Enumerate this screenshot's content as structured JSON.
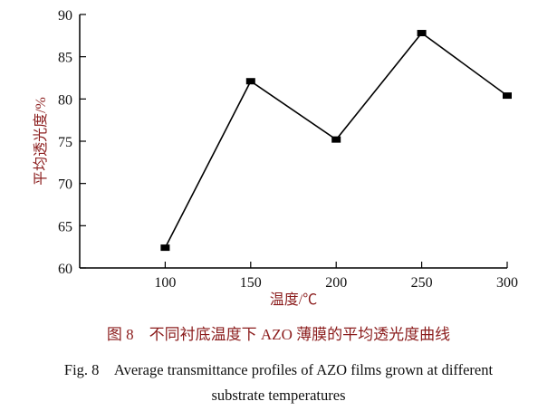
{
  "chart_data": {
    "type": "line",
    "x": [
      100,
      150,
      200,
      250,
      300
    ],
    "series": [
      {
        "values": [
          62.4,
          82.1,
          75.2,
          87.8,
          80.4
        ],
        "marker": "square",
        "color": "#000000"
      }
    ],
    "xlabel": "温度/℃",
    "ylabel": "平均透光度/%",
    "xlim": [
      50,
      300
    ],
    "ylim": [
      60,
      90
    ],
    "xticks": [
      100,
      150,
      200,
      250,
      300
    ],
    "yticks": [
      60,
      65,
      70,
      75,
      80,
      85,
      90
    ],
    "grid": false,
    "label_color": "#8b1c1c"
  },
  "caption": {
    "zh": "图 8　不同衬底温度下 AZO 薄膜的平均透光度曲线",
    "en_line1": "Fig. 8　Average transmittance profiles of AZO films grown at different",
    "en_line2": "substrate temperatures"
  }
}
